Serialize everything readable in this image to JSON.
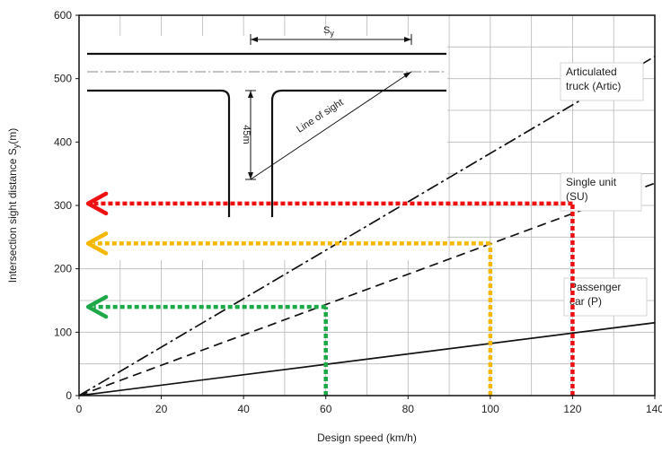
{
  "chart_data": {
    "type": "line",
    "xlabel": "Design speed (km/h)",
    "ylabel": "Intersection sight distance S",
    "ylabel_sub": "y",
    "ylabel_unit": "(m)",
    "xlim": [
      0,
      140
    ],
    "ylim": [
      0,
      600
    ],
    "x_ticks": [
      0,
      20,
      40,
      60,
      80,
      100,
      120,
      140
    ],
    "y_ticks": [
      0,
      100,
      200,
      300,
      400,
      500,
      600
    ],
    "grid": true,
    "series": [
      {
        "name_lines": [
          "Articulated",
          "truck (Artic)"
        ],
        "style": "dash-dot",
        "points": [
          [
            0,
            0
          ],
          [
            140,
            535
          ]
        ]
      },
      {
        "name_lines": [
          "Single unit",
          "(SU)"
        ],
        "style": "dashed",
        "points": [
          [
            0,
            0
          ],
          [
            140,
            335
          ]
        ]
      },
      {
        "name_lines": [
          "Passenger",
          "car (P)"
        ],
        "style": "solid",
        "points": [
          [
            0,
            0
          ],
          [
            140,
            115
          ]
        ]
      }
    ],
    "annotations": [
      {
        "speed": 60,
        "distance": 140,
        "color": "#1fa84a"
      },
      {
        "speed": 100,
        "distance": 240,
        "color": "#f5b800"
      },
      {
        "speed": 120,
        "distance": 303,
        "color": "#ee1111"
      }
    ],
    "inset": {
      "sight_label": "S",
      "sight_label_sub": "y",
      "depth_label": "45m",
      "line_label": "Line of sight"
    }
  }
}
